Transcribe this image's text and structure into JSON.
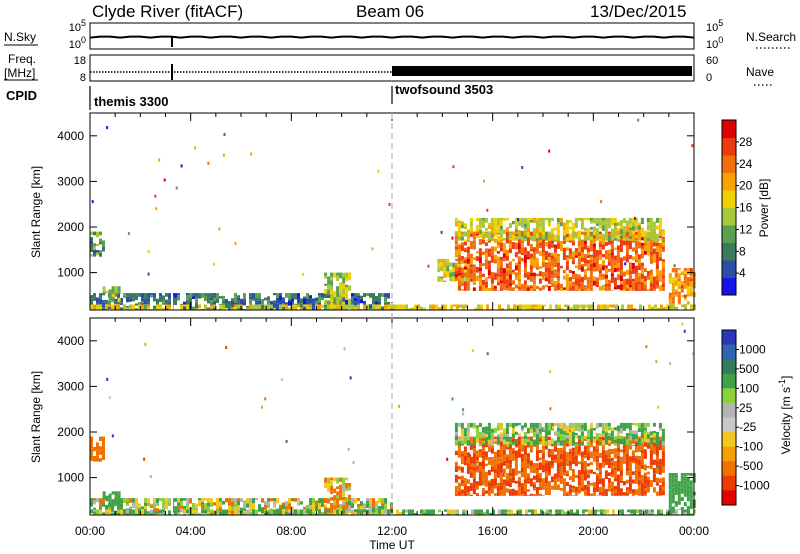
{
  "header": {
    "station": "Clyde River (fitACF)",
    "beam": "Beam 06",
    "date": "13/Dec/2015"
  },
  "status_panels": {
    "nsky_label": "N.Sky",
    "nsky_ticks": [
      "10^5",
      "10^0"
    ],
    "nsearch_label": "N.Search",
    "nsearch_ticks": [
      "10^5",
      "10^0"
    ],
    "freq_label_top": "Freq.",
    "freq_label_bottom": "[MHz]",
    "freq_ticks": [
      "18",
      "8"
    ],
    "nave_label": "Nave",
    "nave_ticks": [
      "60",
      "0"
    ],
    "cpid_label": "CPID",
    "modes": [
      {
        "name": "themis 3300",
        "start_hour": 0,
        "end_hour": 12
      },
      {
        "name": "twofsound 3503",
        "start_hour": 12,
        "end_hour": 24
      }
    ]
  },
  "x_axis": {
    "title": "Time UT",
    "tick_labels": [
      "00:00",
      "04:00",
      "08:00",
      "12:00",
      "16:00",
      "20:00",
      "00:00"
    ]
  },
  "colors": {
    "power": [
      "#1515e8",
      "#2a4fa8",
      "#3c7a5e",
      "#5aa050",
      "#a8c83c",
      "#f0d000",
      "#f6a200",
      "#f46e0a",
      "#ee3a10",
      "#e00000"
    ],
    "velocity": [
      "#2a35b8",
      "#2e64b0",
      "#357a5a",
      "#3fa248",
      "#8cd03c",
      "#b4b4b4",
      "#c8c8c8",
      "#f2c81e",
      "#f4a000",
      "#f07000",
      "#ee3a00",
      "#e40000"
    ]
  },
  "chart_data": [
    {
      "type": "heatmap",
      "title": "Power",
      "xlabel": "Time UT",
      "ylabel": "Slant Range [km]",
      "xlim": [
        0,
        24
      ],
      "ylim": [
        180,
        4500
      ],
      "yticks": [
        "1000",
        "2000",
        "3000",
        "4000"
      ],
      "colorbar_label": "Power [dB]",
      "colorbar_ticks": [
        "4",
        "8",
        "12",
        "16",
        "20",
        "24",
        "28"
      ],
      "colorbar_range": [
        0,
        32
      ],
      "regions": [
        {
          "t0": 0.0,
          "t1": 12.0,
          "r0": 180,
          "r1": 550,
          "level": 6
        },
        {
          "t0": 0.0,
          "t1": 0.5,
          "r0": 1350,
          "r1": 1900,
          "level": 10
        },
        {
          "t0": 0.5,
          "t1": 1.2,
          "r0": 350,
          "r1": 700,
          "level": 14
        },
        {
          "t0": 9.3,
          "t1": 10.3,
          "r0": 200,
          "r1": 1000,
          "level": 14
        },
        {
          "t0": 0.0,
          "t1": 24.0,
          "r0": 180,
          "r1": 300,
          "level": 18
        },
        {
          "t0": 13.8,
          "t1": 15.0,
          "r0": 800,
          "r1": 1300,
          "level": 16
        },
        {
          "t0": 14.5,
          "t1": 22.8,
          "r0": 600,
          "r1": 1900,
          "level": 26
        },
        {
          "t0": 14.5,
          "t1": 22.8,
          "r0": 1700,
          "r1": 2200,
          "level": 16
        },
        {
          "t0": 23.0,
          "t1": 24.0,
          "r0": 300,
          "r1": 1100,
          "level": 22
        }
      ]
    },
    {
      "type": "heatmap",
      "title": "Velocity",
      "xlabel": "Time UT",
      "ylabel": "Slant Range [km]",
      "xlim": [
        0,
        24
      ],
      "ylim": [
        180,
        4500
      ],
      "yticks": [
        "1000",
        "2000",
        "3000",
        "4000"
      ],
      "colorbar_label": "Velocity [m s^-1]",
      "colorbar_ticks": [
        "1000",
        "500",
        "100",
        "25",
        "-25",
        "-100",
        "-500",
        "-1000"
      ],
      "regions": [
        {
          "t0": 0.0,
          "t1": 12.0,
          "r0": 180,
          "r1": 550,
          "level": 25
        },
        {
          "t0": 0.0,
          "t1": 0.5,
          "r0": 1350,
          "r1": 1900,
          "level": -300
        },
        {
          "t0": 0.5,
          "t1": 1.2,
          "r0": 350,
          "r1": 700,
          "level": 300
        },
        {
          "t0": 9.3,
          "t1": 10.3,
          "r0": 200,
          "r1": 1000,
          "level": -100
        },
        {
          "t0": 0.0,
          "t1": 24.0,
          "r0": 180,
          "r1": 300,
          "level": 100
        },
        {
          "t0": 14.5,
          "t1": 22.8,
          "r0": 600,
          "r1": 1900,
          "level": -500
        },
        {
          "t0": 14.5,
          "t1": 22.8,
          "r0": 1700,
          "r1": 2200,
          "level": 100
        },
        {
          "t0": 23.0,
          "t1": 24.0,
          "r0": 300,
          "r1": 1100,
          "level": 300
        }
      ]
    }
  ]
}
